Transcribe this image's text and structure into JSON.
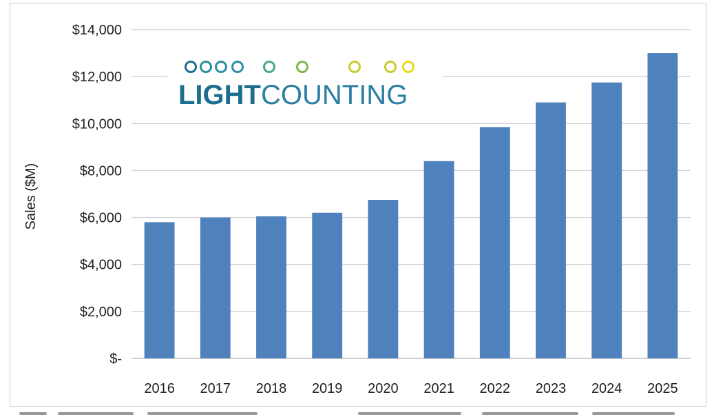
{
  "chart_data": {
    "type": "bar",
    "title": "",
    "xlabel": "",
    "ylabel": "Sales ($M)",
    "categories": [
      "2016",
      "2017",
      "2018",
      "2019",
      "2020",
      "2021",
      "2022",
      "2023",
      "2024",
      "2025"
    ],
    "values": [
      5800,
      6000,
      6050,
      6200,
      6750,
      8400,
      9850,
      10900,
      11750,
      13000
    ],
    "ylim": [
      0,
      14000
    ],
    "yticks": [
      0,
      2000,
      4000,
      6000,
      8000,
      10000,
      12000,
      14000
    ],
    "ytick_labels": [
      "$-",
      "$2,000",
      "$4,000",
      "$6,000",
      "$8,000",
      "$10,000",
      "$12,000",
      "$14,000"
    ],
    "grid": true,
    "bar_color": "#4f81bd",
    "legend": false
  },
  "logo": {
    "text_bold": "LIGHT",
    "text_regular": "COUNTING",
    "line_colors": [
      "#1b6f92",
      "#2a8fa0",
      "#4aa68a",
      "#7fb84a",
      "#c8cc2a",
      "#e8d81c"
    ]
  }
}
